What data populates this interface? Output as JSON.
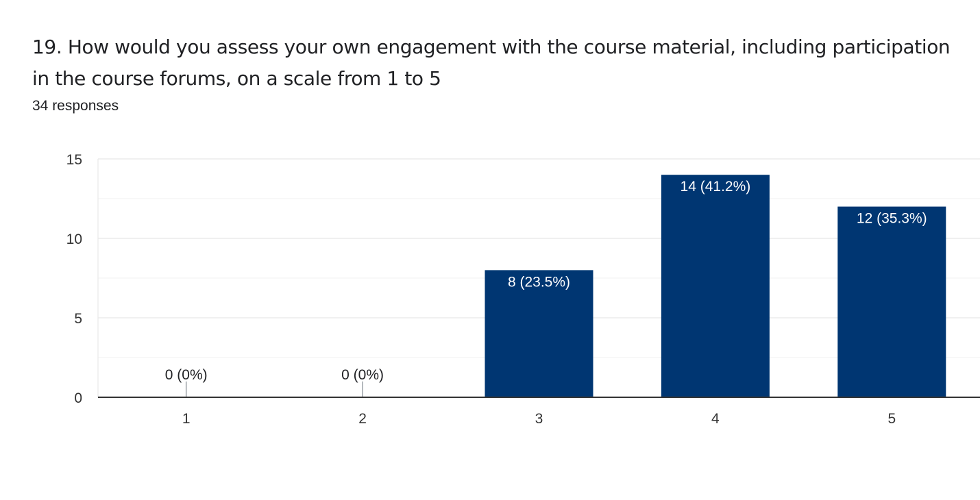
{
  "question": {
    "title": "19. How would you assess your own engagement with the course material, including participation in the course forums, on a scale from 1 to 5",
    "responses": "34 responses"
  },
  "colors": {
    "bar": "#003672",
    "bar_label": "#ffffff",
    "outside_label": "#202124",
    "gridline": "#ebebeb",
    "baseline": "#333333",
    "tick_text": "#333333"
  },
  "chart_data": {
    "type": "bar",
    "categories": [
      "1",
      "2",
      "3",
      "4",
      "5"
    ],
    "values": [
      0,
      0,
      8,
      14,
      12
    ],
    "data_labels": [
      "0 (0%)",
      "0 (0%)",
      "8 (23.5%)",
      "14 (41.2%)",
      "12 (35.3%)"
    ],
    "y_ticks": [
      0,
      5,
      10,
      15
    ],
    "ylim": [
      0,
      15
    ],
    "grid": true,
    "legend": "none"
  }
}
